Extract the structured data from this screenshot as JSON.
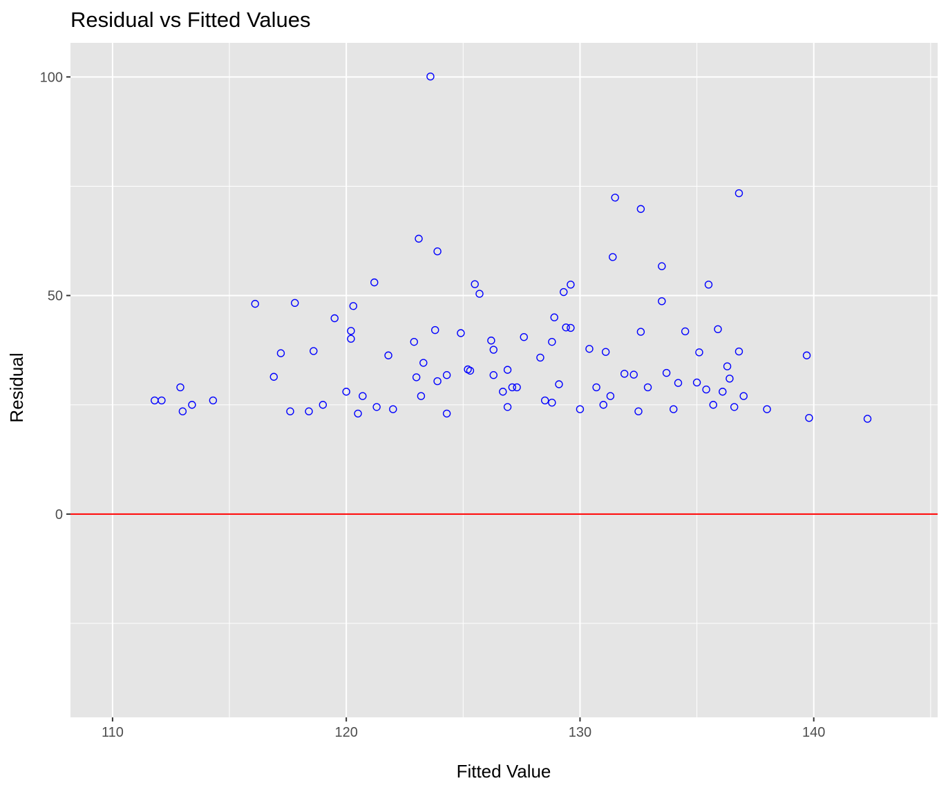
{
  "chart_data": {
    "type": "scatter",
    "title": "Residual vs Fitted Values",
    "xlabel": "Fitted Value",
    "ylabel": "Residual",
    "xlim": [
      108.2,
      145.3
    ],
    "ylim": [
      -46.5,
      107.8
    ],
    "x_ticks": [
      110,
      120,
      130,
      140
    ],
    "y_ticks": [
      0,
      50,
      100
    ],
    "x_tick_labels": [
      "110",
      "120",
      "130",
      "140"
    ],
    "y_tick_labels": [
      "0",
      "50",
      "100"
    ],
    "grid": true,
    "panel_background": "#e5e5e5",
    "grid_color": "#ffffff",
    "point_color": "#0000ff",
    "marker": "open-circle",
    "reference_line": {
      "y": 0,
      "color": "#ff0000"
    },
    "points": [
      [
        123.6,
        100.1
      ],
      [
        136.8,
        73.4
      ],
      [
        131.5,
        72.4
      ],
      [
        132.6,
        69.8
      ],
      [
        123.1,
        63.0
      ],
      [
        123.9,
        60.1
      ],
      [
        131.4,
        58.8
      ],
      [
        133.5,
        56.7
      ],
      [
        121.2,
        53.0
      ],
      [
        125.5,
        52.6
      ],
      [
        129.6,
        52.5
      ],
      [
        135.5,
        52.5
      ],
      [
        125.7,
        50.4
      ],
      [
        129.3,
        50.8
      ],
      [
        133.5,
        48.7
      ],
      [
        116.1,
        48.1
      ],
      [
        117.8,
        48.3
      ],
      [
        120.3,
        47.6
      ],
      [
        119.5,
        44.8
      ],
      [
        128.9,
        45.0
      ],
      [
        129.4,
        42.7
      ],
      [
        129.6,
        42.6
      ],
      [
        120.2,
        41.9
      ],
      [
        123.8,
        42.1
      ],
      [
        135.9,
        42.3
      ],
      [
        124.9,
        41.4
      ],
      [
        132.6,
        41.7
      ],
      [
        134.5,
        41.8
      ],
      [
        120.2,
        40.1
      ],
      [
        127.6,
        40.5
      ],
      [
        126.2,
        39.7
      ],
      [
        128.8,
        39.4
      ],
      [
        122.9,
        39.4
      ],
      [
        126.3,
        37.6
      ],
      [
        118.6,
        37.3
      ],
      [
        117.2,
        36.8
      ],
      [
        121.8,
        36.3
      ],
      [
        130.4,
        37.8
      ],
      [
        131.1,
        37.1
      ],
      [
        135.1,
        37.0
      ],
      [
        136.8,
        37.2
      ],
      [
        139.7,
        36.3
      ],
      [
        123.3,
        34.6
      ],
      [
        128.3,
        35.8
      ],
      [
        125.3,
        32.8
      ],
      [
        126.9,
        33.0
      ],
      [
        125.2,
        33.1
      ],
      [
        133.7,
        32.3
      ],
      [
        136.3,
        33.8
      ],
      [
        116.9,
        31.4
      ],
      [
        123.0,
        31.3
      ],
      [
        123.9,
        30.4
      ],
      [
        124.3,
        31.8
      ],
      [
        126.3,
        31.8
      ],
      [
        129.1,
        29.7
      ],
      [
        131.9,
        32.1
      ],
      [
        132.3,
        31.9
      ],
      [
        134.2,
        30.0
      ],
      [
        135.0,
        30.1
      ],
      [
        136.4,
        31.0
      ],
      [
        112.9,
        29.0
      ],
      [
        120.0,
        28.0
      ],
      [
        127.1,
        29.0
      ],
      [
        127.3,
        29.0
      ],
      [
        130.7,
        29.0
      ],
      [
        132.9,
        29.0
      ],
      [
        135.4,
        28.5
      ],
      [
        136.1,
        28.0
      ],
      [
        111.8,
        26.0
      ],
      [
        112.1,
        26.0
      ],
      [
        114.3,
        26.0
      ],
      [
        120.7,
        27.0
      ],
      [
        123.2,
        27.0
      ],
      [
        126.7,
        28.0
      ],
      [
        128.5,
        26.0
      ],
      [
        131.3,
        27.0
      ],
      [
        137.0,
        27.0
      ],
      [
        113.0,
        23.5
      ],
      [
        113.4,
        25.0
      ],
      [
        117.6,
        23.5
      ],
      [
        118.4,
        23.5
      ],
      [
        119.0,
        25.0
      ],
      [
        120.5,
        23.0
      ],
      [
        121.3,
        24.5
      ],
      [
        122.0,
        24.0
      ],
      [
        124.3,
        23.0
      ],
      [
        126.9,
        24.5
      ],
      [
        128.8,
        25.5
      ],
      [
        130.0,
        24.0
      ],
      [
        131.0,
        25.0
      ],
      [
        132.5,
        23.5
      ],
      [
        134.0,
        24.0
      ],
      [
        135.7,
        25.0
      ],
      [
        136.6,
        24.5
      ],
      [
        138.0,
        24.0
      ],
      [
        139.8,
        22.0
      ],
      [
        142.3,
        21.8
      ]
    ]
  }
}
